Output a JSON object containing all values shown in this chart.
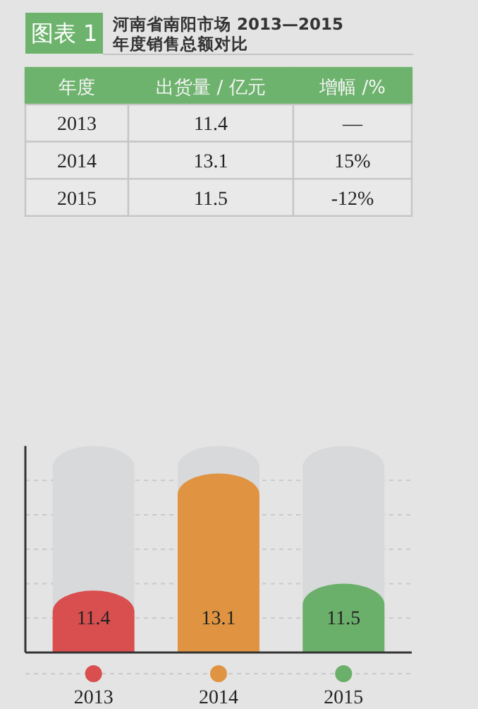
{
  "chart_data": [
    {
      "type": "other",
      "title": "图表 1",
      "subtitle": "河南省南阳市场 2013—2015 年度销售总额对比",
      "annotations": [
        "年度",
        "出货量 / 亿元",
        "增幅 /%",
        "2013",
        "11.4",
        "—",
        "2014",
        "13.1",
        "15%",
        "2015",
        "11.5",
        "-12%"
      ]
    },
    {
      "type": "bar",
      "categories": [
        "2013",
        "2014",
        "2015"
      ],
      "values": [
        11.4,
        13.1,
        11.5
      ],
      "colors": [
        "#d94f4f",
        "#e09442",
        "#6aaf6a"
      ],
      "ylim": [
        10.5,
        13.5
      ],
      "yticks": [
        {
          "value": 11,
          "label": null
        },
        {
          "value": 11.5,
          "label": null
        },
        {
          "value": 12,
          "label": null
        },
        {
          "value": 12.5,
          "label": null
        },
        {
          "value": 13,
          "label": null
        }
      ],
      "grid": "y",
      "data_labels": true
    }
  ]
}
